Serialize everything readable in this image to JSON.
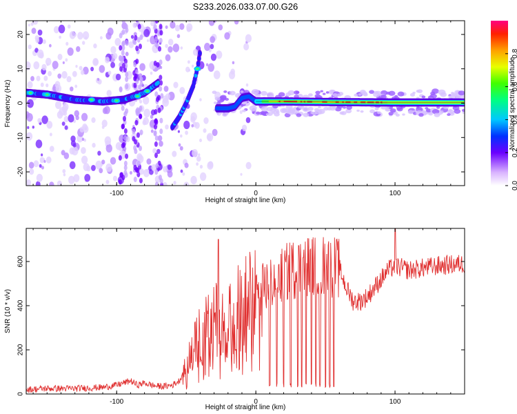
{
  "title": "S233.2026.033.07.00.G26",
  "chart_data": [
    {
      "type": "heatmap",
      "name": "spectrogram",
      "xlabel": "Height of straight line (km)",
      "ylabel": "Frequency (Hz)",
      "xlim": [
        -165,
        150
      ],
      "ylim": [
        -24,
        24
      ],
      "xticks": [
        -100,
        0,
        100
      ],
      "yticks": [
        -20,
        -10,
        0,
        10,
        20
      ],
      "colorbar": {
        "label": "Normalized spectral amplitude",
        "range": [
          0,
          1
        ],
        "ticks": [
          "0.0",
          "0.2",
          "0.4",
          "0.6",
          "0.8"
        ],
        "tick_values": [
          0.0,
          0.2,
          0.4,
          0.6,
          0.8
        ]
      },
      "ridges": [
        {
          "name": "low-altitude-line",
          "points": [
            [
              -165,
              3
            ],
            [
              -150,
              2.5
            ],
            [
              -130,
              1
            ],
            [
              -110,
              0.5
            ],
            [
              -95,
              1
            ],
            [
              -80,
              3
            ],
            [
              -70,
              6
            ]
          ]
        },
        {
          "name": "rising-branch",
          "points": [
            [
              -60,
              -7
            ],
            [
              -55,
              -4
            ],
            [
              -50,
              0
            ],
            [
              -45,
              5
            ],
            [
              -42,
              10
            ],
            [
              -40,
              15
            ]
          ]
        },
        {
          "name": "stable-line",
          "points": [
            [
              -28,
              -1.5
            ],
            [
              -20,
              -1.5
            ],
            [
              -15,
              -1
            ],
            [
              -10,
              1.5
            ],
            [
              -5,
              2
            ],
            [
              0,
              0.5
            ],
            [
              20,
              0.5
            ],
            [
              60,
              0.3
            ],
            [
              100,
              0.2
            ],
            [
              150,
              0.2
            ]
          ]
        }
      ]
    },
    {
      "type": "line",
      "name": "snr",
      "xlabel": "Height of straight line (km)",
      "ylabel": "SNR (10 * v/v)",
      "xlim": [
        -165,
        150
      ],
      "ylim": [
        0,
        750
      ],
      "xticks": [
        -100,
        0,
        100
      ],
      "yticks": [
        0,
        200,
        400,
        600
      ],
      "color": "#e03030",
      "series": [
        {
          "name": "SNR",
          "x": [
            -165,
            -150,
            -130,
            -110,
            -100,
            -95,
            -90,
            -85,
            -80,
            -75,
            -70,
            -65,
            -60,
            -55,
            -50,
            -45,
            -40,
            -35,
            -30,
            -25,
            -20,
            -15,
            -10,
            -5,
            0,
            5,
            10,
            15,
            20,
            25,
            30,
            35,
            40,
            45,
            50,
            55,
            60,
            65,
            70,
            75,
            80,
            85,
            90,
            95,
            100,
            105,
            110,
            120,
            130,
            140,
            150
          ],
          "y": [
            20,
            25,
            25,
            30,
            40,
            50,
            60,
            40,
            50,
            40,
            35,
            35,
            40,
            60,
            120,
            200,
            260,
            300,
            330,
            350,
            360,
            380,
            400,
            420,
            440,
            480,
            500,
            520,
            540,
            560,
            570,
            580,
            580,
            580,
            580,
            575,
            570,
            480,
            420,
            420,
            440,
            480,
            520,
            560,
            580,
            570,
            560,
            570,
            580,
            585,
            590
          ]
        }
      ],
      "spikes": [
        {
          "x": -27,
          "y": 700
        },
        {
          "x": 100,
          "y": 750
        }
      ],
      "dropouts": [
        10,
        15,
        20,
        25,
        30,
        33,
        36,
        40,
        43,
        46,
        50,
        53,
        56
      ]
    }
  ]
}
